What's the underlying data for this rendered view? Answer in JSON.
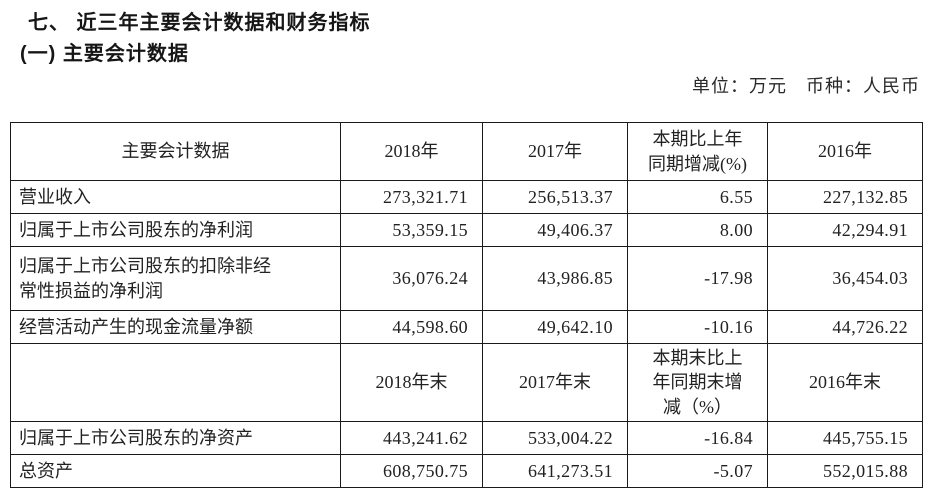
{
  "document": {
    "section_title": "七、 近三年主要会计数据和财务指标",
    "subsection_title": "(一) 主要会计数据",
    "unit_note": "单位：万元　币种：人民币"
  },
  "table": {
    "rows": [
      {
        "cells": [
          "主要会计数据",
          "2018年",
          "2017年",
          "本期比上年\n同期增减(%)",
          "2016年"
        ]
      },
      {
        "cells": [
          "营业收入",
          "273,321.71",
          "256,513.37",
          "6.55",
          "227,132.85"
        ]
      },
      {
        "cells": [
          "归属于上市公司股东的净利润",
          "53,359.15",
          "49,406.37",
          "8.00",
          "42,294.91"
        ]
      },
      {
        "cells": [
          "归属于上市公司股东的扣除非经\n常性损益的净利润",
          "36,076.24",
          "43,986.85",
          "-17.98",
          "36,454.03"
        ]
      },
      {
        "cells": [
          "经营活动产生的现金流量净额",
          "44,598.60",
          "49,642.10",
          "-10.16",
          "44,726.22"
        ]
      },
      {
        "cells": [
          "",
          "2018年末",
          "2017年末",
          "本期末比上\n年同期末增\n减（%）",
          "2016年末"
        ]
      },
      {
        "cells": [
          "归属于上市公司股东的净资产",
          "443,241.62",
          "533,004.22",
          "-16.84",
          "445,755.15"
        ]
      },
      {
        "cells": [
          "总资产",
          "608,750.75",
          "641,273.51",
          "-5.07",
          "552,015.88"
        ]
      }
    ]
  }
}
